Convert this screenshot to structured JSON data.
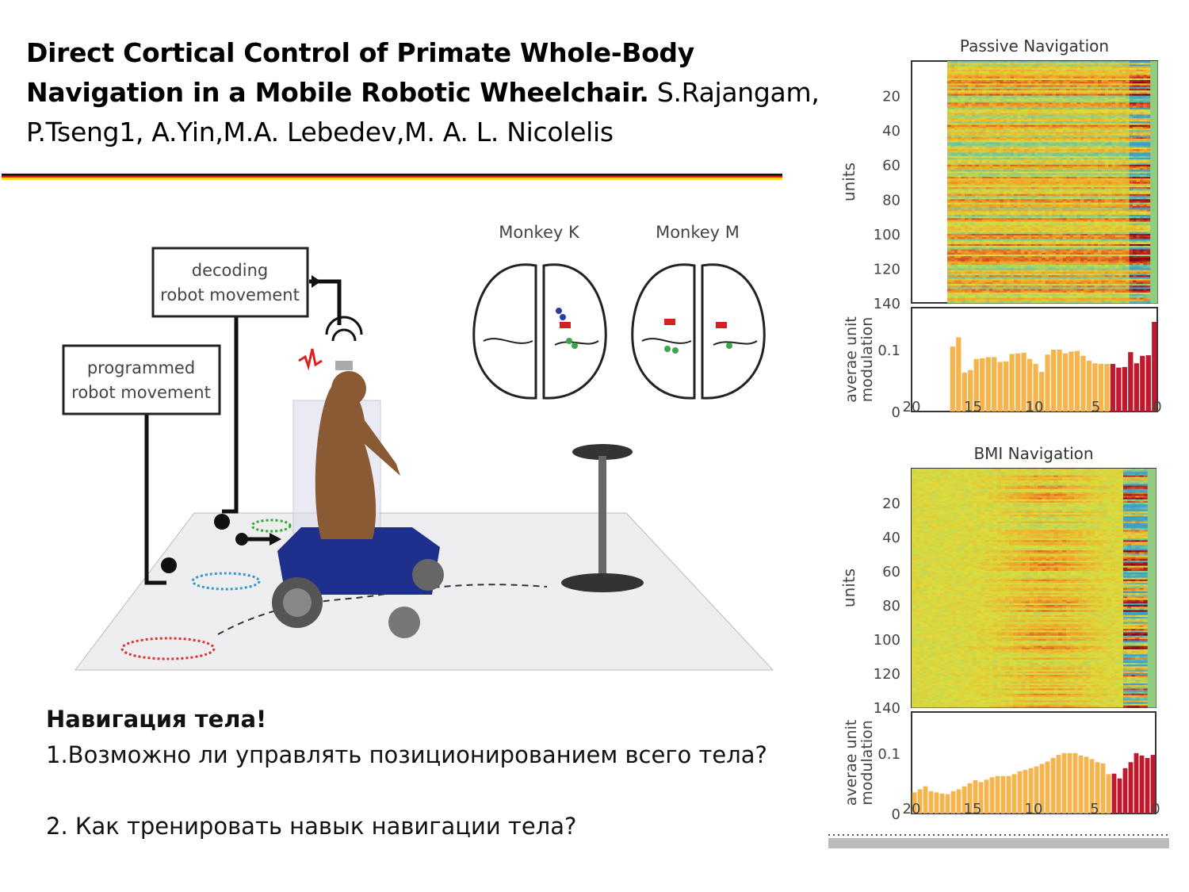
{
  "slide": {
    "title_bold": "Direct Cortical Control of Primate Whole-Body Navigation in a Mobile Robotic Wheelchair.",
    "title_authors": " S.Rajangam, P.Tseng1, A.Yin,M.A. Lebedev,M. A. L. Nicolelis",
    "heading": "Навигация тела!",
    "q1": "1.Возможно ли  управлять позиционированием всего тела?",
    "q2": "2. Как тренировать навык навигации тела?"
  },
  "illustration": {
    "box_decoding": [
      "decoding",
      "robot movement"
    ],
    "box_programmed": [
      "programmed",
      "robot movement"
    ],
    "monkey_k": "Monkey K",
    "monkey_m": "Monkey M",
    "colors": {
      "blue": "#2a3c9c",
      "red": "#d32020",
      "green": "#3aa84a"
    }
  },
  "chart_data": [
    {
      "type": "heatmap",
      "title": "Passive Navigation",
      "ylabel": "units",
      "yticks": [
        20,
        40,
        60,
        80,
        100,
        120,
        140
      ],
      "ylim": [
        0,
        140
      ]
    },
    {
      "type": "bar",
      "ylabel": "averae unit modulation",
      "yticks": [
        0,
        0.1
      ],
      "xticks": [
        20,
        15,
        10,
        5,
        0
      ],
      "xlim": [
        20,
        0
      ],
      "series": [
        {
          "color": "#f6b44c",
          "x_start": 16.9,
          "values": [
            0.105,
            0.12,
            0.063,
            0.067,
            0.085,
            0.086,
            0.088,
            0.088,
            0.08,
            0.081,
            0.093,
            0.094,
            0.095,
            0.085,
            0.077,
            0.064,
            0.092,
            0.1,
            0.1,
            0.094,
            0.097,
            0.098,
            0.09,
            0.082,
            0.078,
            0.077,
            0.077
          ]
        },
        {
          "color": "#c0182c",
          "values": [
            0.077,
            0.071,
            0.072,
            0.096,
            0.078,
            0.09,
            0.091,
            0.145
          ]
        }
      ]
    },
    {
      "type": "heatmap",
      "title": "BMI Navigation",
      "ylabel": "units",
      "yticks": [
        20,
        40,
        60,
        80,
        100,
        120,
        140
      ],
      "ylim": [
        0,
        140
      ]
    },
    {
      "type": "bar",
      "ylabel": "averae unit modulation",
      "yticks": [
        0,
        0.1
      ],
      "xticks": [
        20,
        15,
        10,
        5,
        0
      ],
      "xlim": [
        20,
        0
      ],
      "series": [
        {
          "color": "#f6b44c",
          "x_start": 20,
          "values": [
            0.035,
            0.04,
            0.045,
            0.037,
            0.035,
            0.033,
            0.032,
            0.037,
            0.04,
            0.045,
            0.05,
            0.055,
            0.052,
            0.056,
            0.06,
            0.062,
            0.062,
            0.062,
            0.065,
            0.07,
            0.072,
            0.075,
            0.078,
            0.082,
            0.086,
            0.092,
            0.097,
            0.1,
            0.1,
            0.1,
            0.096,
            0.094,
            0.09,
            0.085,
            0.083,
            0.065
          ]
        },
        {
          "color": "#c0182c",
          "values": [
            0.066,
            0.058,
            0.075,
            0.085,
            0.1,
            0.096,
            0.092,
            0.097
          ]
        }
      ]
    }
  ]
}
